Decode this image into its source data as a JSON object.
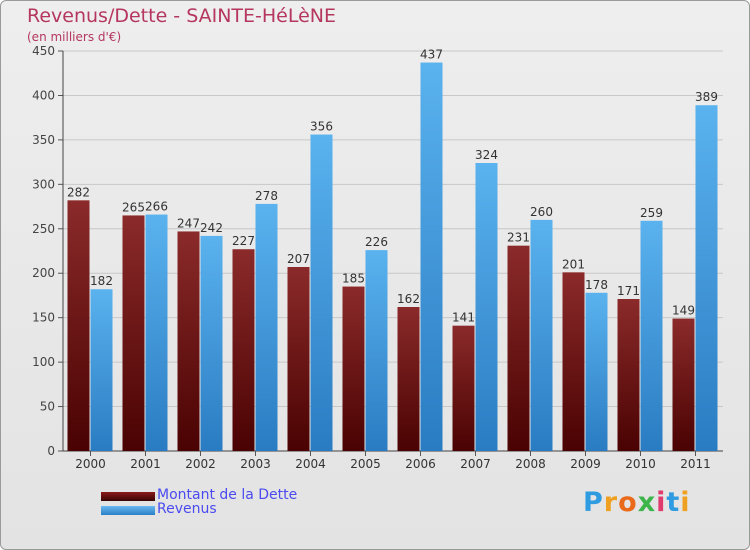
{
  "title": "Revenus/Dette - SAINTE-HéLèNE",
  "subtitle": "(en milliers d'€)",
  "chart_data": {
    "type": "bar",
    "title": "Revenus/Dette - SAINTE-HéLèNE",
    "ylabel": "(en milliers d'€)",
    "xlabel": "",
    "categories": [
      "2000",
      "2001",
      "2002",
      "2003",
      "2004",
      "2005",
      "2006",
      "2007",
      "2008",
      "2009",
      "2010",
      "2011"
    ],
    "series": [
      {
        "name": "Montant de la Dette",
        "color": "#8b1a1a",
        "values": [
          282,
          265,
          247,
          227,
          207,
          185,
          162,
          141,
          231,
          201,
          171,
          149
        ]
      },
      {
        "name": "Revenus",
        "color": "#4da6e8",
        "values": [
          182,
          266,
          242,
          278,
          356,
          226,
          437,
          324,
          260,
          178,
          259,
          389
        ]
      }
    ],
    "ylim": [
      0,
      450
    ],
    "yticks": [
      0,
      50,
      100,
      150,
      200,
      250,
      300,
      350,
      400,
      450
    ],
    "grid": true,
    "legend": "bottom-left"
  },
  "legend": {
    "items": [
      {
        "label": "Montant de la Dette",
        "color": "#6b0f0f"
      },
      {
        "label": "Revenus",
        "color": "#3d98e0"
      }
    ]
  },
  "logo": {
    "letters": [
      "P",
      "r",
      "o",
      "x",
      "i",
      "t",
      "i"
    ],
    "colors": [
      "#2f9be0",
      "#f0a020",
      "#e86a1a",
      "#3cb54a",
      "#e03a6e",
      "#2f9be0",
      "#f0a020"
    ]
  }
}
